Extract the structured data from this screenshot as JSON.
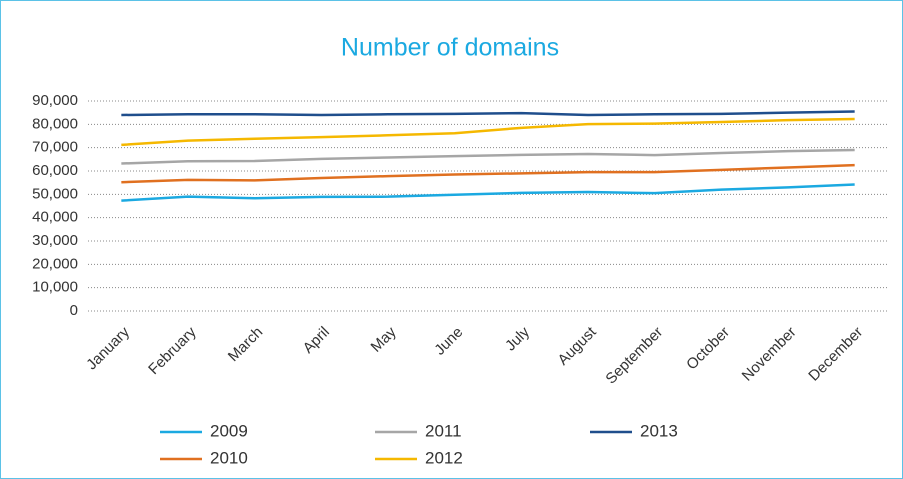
{
  "chart_data": {
    "type": "line",
    "title": "Number of domains",
    "categories": [
      "January",
      "February",
      "March",
      "April",
      "May",
      "June",
      "July",
      "August",
      "September",
      "October",
      "November",
      "December"
    ],
    "series": [
      {
        "name": "2009",
        "color": "#1ba9e1",
        "values": [
          47300,
          49000,
          48300,
          48900,
          49000,
          49800,
          50600,
          51000,
          50500,
          52000,
          53000,
          54200
        ]
      },
      {
        "name": "2010",
        "color": "#e07020",
        "values": [
          55200,
          56200,
          56000,
          57000,
          57800,
          58500,
          59000,
          59500,
          59500,
          60500,
          61500,
          62500
        ]
      },
      {
        "name": "2011",
        "color": "#a6a6a6",
        "values": [
          63200,
          64200,
          64300,
          65200,
          65800,
          66400,
          66900,
          67300,
          66800,
          67700,
          68500,
          69000
        ]
      },
      {
        "name": "2012",
        "color": "#f5b800",
        "values": [
          71200,
          73000,
          73800,
          74500,
          75300,
          76200,
          78500,
          80100,
          80300,
          81000,
          81800,
          82300
        ]
      },
      {
        "name": "2013",
        "color": "#1f4e8c",
        "values": [
          84000,
          84300,
          84300,
          84000,
          84300,
          84500,
          84800,
          84000,
          84300,
          84500,
          85000,
          85500
        ]
      }
    ],
    "ylim": [
      0,
      90000
    ],
    "yticks": [
      0,
      {
        "value": 10000,
        "label": "10,000"
      },
      {
        "value": 20000,
        "label": "20,000"
      },
      {
        "value": 30000,
        "label": "30,000"
      },
      {
        "value": 40000,
        "label": "40,000"
      },
      {
        "value": 50000,
        "label": "50,000"
      },
      {
        "value": 60000,
        "label": "60,000"
      },
      {
        "value": 70000,
        "label": "70,000"
      },
      {
        "value": 80000,
        "label": "80,000"
      },
      {
        "value": 90000,
        "label": "90,000"
      }
    ],
    "grid": true,
    "legend": "bottom"
  }
}
